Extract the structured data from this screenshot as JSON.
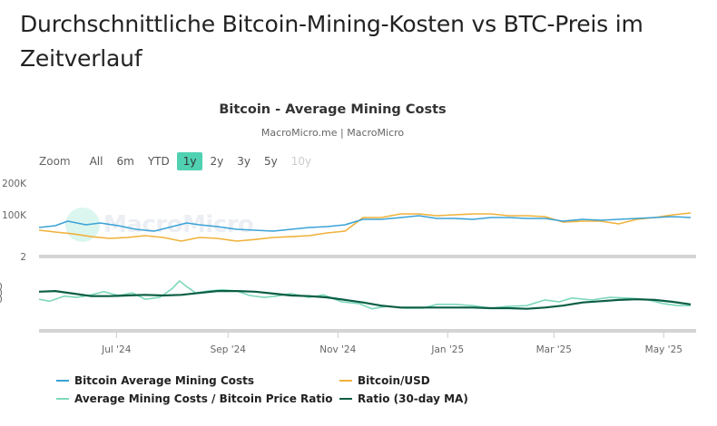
{
  "page": {
    "title": "Durchschnittliche Bitcoin-Mining-Kosten vs BTC-Preis im Zeitverlauf"
  },
  "chart": {
    "title": "Bitcoin - Average Mining Costs",
    "subtitle": "MacroMicro.me | MacroMicro",
    "watermark": "MacroMicro",
    "range_selector": {
      "label": "Zoom",
      "buttons": [
        {
          "label": "All",
          "state": "normal"
        },
        {
          "label": "6m",
          "state": "normal"
        },
        {
          "label": "YTD",
          "state": "normal"
        },
        {
          "label": "1y",
          "state": "selected"
        },
        {
          "label": "2y",
          "state": "normal"
        },
        {
          "label": "3y",
          "state": "normal"
        },
        {
          "label": "5y",
          "state": "normal"
        },
        {
          "label": "10y",
          "state": "disabled"
        }
      ]
    },
    "colors": {
      "mining_cost": "#3ba3d6",
      "btc_usd": "#f0b23b",
      "ratio": "#7fd8bd",
      "ratio_ma": "#0b5e45",
      "selected_button": "#4fd1b2",
      "axis_bar": "#d4d4d4"
    }
  },
  "chart_data": {
    "type": "line",
    "title": "Bitcoin - Average Mining Costs",
    "subtitle": "MacroMicro.me | MacroMicro",
    "x_range": [
      "2024-05-19",
      "2025-05-19"
    ],
    "x_ticks": [
      {
        "date": "2024-07-01",
        "label": "Jul '24"
      },
      {
        "date": "2024-09-01",
        "label": "Sep '24"
      },
      {
        "date": "2024-11-01",
        "label": "Nov '24"
      },
      {
        "date": "2025-01-01",
        "label": "Jan '25"
      },
      {
        "date": "2025-03-01",
        "label": "Mar '25"
      },
      {
        "date": "2025-05-01",
        "label": "May '25"
      }
    ],
    "panes": [
      {
        "name": "price",
        "y_scale": "log",
        "y_ticks": [
          {
            "value": 200000,
            "label": "200K"
          },
          {
            "value": 100000,
            "label": "100K"
          },
          {
            "value": 2,
            "label": "2"
          }
        ],
        "series": [
          {
            "name": "Bitcoin Average Mining Costs",
            "key": "mining_cost",
            "unit": "USD",
            "points": [
              [
                "2024-05-19",
                75800
              ],
              [
                "2024-05-28",
                78800
              ],
              [
                "2024-06-04",
                87100
              ],
              [
                "2024-06-14",
                80400
              ],
              [
                "2024-06-22",
                83700
              ],
              [
                "2024-07-02",
                78800
              ],
              [
                "2024-07-12",
                72900
              ],
              [
                "2024-07-22",
                70000
              ],
              [
                "2024-08-01",
                77300
              ],
              [
                "2024-08-09",
                83700
              ],
              [
                "2024-08-16",
                80400
              ],
              [
                "2024-08-26",
                77300
              ],
              [
                "2024-09-06",
                72900
              ],
              [
                "2024-09-16",
                71400
              ],
              [
                "2024-09-26",
                70000
              ],
              [
                "2024-10-06",
                72900
              ],
              [
                "2024-10-16",
                75800
              ],
              [
                "2024-10-26",
                77300
              ],
              [
                "2024-11-05",
                80400
              ],
              [
                "2024-11-15",
                90600
              ],
              [
                "2024-11-25",
                90600
              ],
              [
                "2024-12-06",
                94200
              ],
              [
                "2024-12-16",
                98000
              ],
              [
                "2024-12-26",
                92400
              ],
              [
                "2025-01-05",
                92400
              ],
              [
                "2025-01-15",
                90600
              ],
              [
                "2025-01-25",
                94200
              ],
              [
                "2025-02-04",
                94200
              ],
              [
                "2025-02-14",
                92400
              ],
              [
                "2025-02-24",
                92400
              ],
              [
                "2025-03-06",
                87100
              ],
              [
                "2025-03-17",
                90600
              ],
              [
                "2025-03-27",
                88800
              ],
              [
                "2025-04-06",
                90600
              ],
              [
                "2025-04-16",
                92400
              ],
              [
                "2025-04-26",
                94200
              ],
              [
                "2025-05-06",
                96100
              ],
              [
                "2025-05-16",
                94200
              ]
            ]
          },
          {
            "name": "Bitcoin/USD",
            "key": "btc_usd",
            "unit": "USD",
            "points": [
              [
                "2024-05-19",
                71400
              ],
              [
                "2024-05-28",
                68600
              ],
              [
                "2024-06-07",
                65900
              ],
              [
                "2024-06-17",
                62100
              ],
              [
                "2024-06-27",
                59700
              ],
              [
                "2024-07-07",
                60900
              ],
              [
                "2024-07-17",
                63400
              ],
              [
                "2024-07-27",
                60900
              ],
              [
                "2024-08-06",
                56300
              ],
              [
                "2024-08-16",
                60900
              ],
              [
                "2024-08-26",
                59700
              ],
              [
                "2024-09-06",
                56300
              ],
              [
                "2024-09-16",
                58400
              ],
              [
                "2024-09-26",
                60900
              ],
              [
                "2024-10-06",
                62100
              ],
              [
                "2024-10-16",
                63400
              ],
              [
                "2024-10-26",
                67300
              ],
              [
                "2024-11-05",
                70000
              ],
              [
                "2024-11-15",
                94200
              ],
              [
                "2024-11-25",
                94200
              ],
              [
                "2024-12-06",
                102000
              ],
              [
                "2024-12-16",
                102000
              ],
              [
                "2024-12-26",
                98000
              ],
              [
                "2025-01-05",
                100000
              ],
              [
                "2025-01-15",
                102000
              ],
              [
                "2025-01-25",
                102000
              ],
              [
                "2025-02-04",
                98000
              ],
              [
                "2025-02-14",
                98000
              ],
              [
                "2025-02-24",
                96100
              ],
              [
                "2025-03-06",
                85400
              ],
              [
                "2025-03-17",
                87100
              ],
              [
                "2025-03-27",
                87100
              ],
              [
                "2025-04-06",
                82000
              ],
              [
                "2025-04-16",
                90600
              ],
              [
                "2025-04-26",
                94200
              ],
              [
                "2025-05-06",
                100000
              ],
              [
                "2025-05-16",
                104000
              ]
            ]
          }
        ]
      },
      {
        "name": "ratio",
        "y_scale": "linear",
        "y_ticks": [],
        "series": [
          {
            "name": "Average Mining Costs / Bitcoin Price Ratio",
            "key": "ratio",
            "points": [
              [
                "2024-05-19",
                1.04
              ],
              [
                "2024-05-25",
                1.01
              ],
              [
                "2024-06-02",
                1.09
              ],
              [
                "2024-06-09",
                1.07
              ],
              [
                "2024-06-17",
                1.11
              ],
              [
                "2024-06-24",
                1.16
              ],
              [
                "2024-07-02",
                1.1
              ],
              [
                "2024-07-10",
                1.14
              ],
              [
                "2024-07-17",
                1.04
              ],
              [
                "2024-07-25",
                1.07
              ],
              [
                "2024-08-01",
                1.21
              ],
              [
                "2024-08-05",
                1.33
              ],
              [
                "2024-08-09",
                1.24
              ],
              [
                "2024-08-14",
                1.14
              ],
              [
                "2024-08-21",
                1.17
              ],
              [
                "2024-08-29",
                1.19
              ],
              [
                "2024-09-06",
                1.17
              ],
              [
                "2024-09-13",
                1.1
              ],
              [
                "2024-09-21",
                1.07
              ],
              [
                "2024-09-28",
                1.09
              ],
              [
                "2024-10-06",
                1.13
              ],
              [
                "2024-10-16",
                1.07
              ],
              [
                "2024-10-24",
                1.11
              ],
              [
                "2024-11-03",
                1.0
              ],
              [
                "2024-11-13",
                0.97
              ],
              [
                "2024-11-20",
                0.89
              ],
              [
                "2024-11-28",
                0.93
              ],
              [
                "2024-12-08",
                0.9
              ],
              [
                "2024-12-18",
                0.9
              ],
              [
                "2024-12-26",
                0.96
              ],
              [
                "2025-01-05",
                0.96
              ],
              [
                "2025-01-15",
                0.94
              ],
              [
                "2025-01-25",
                0.9
              ],
              [
                "2025-02-04",
                0.93
              ],
              [
                "2025-02-14",
                0.94
              ],
              [
                "2025-02-24",
                1.03
              ],
              [
                "2025-03-04",
                1.0
              ],
              [
                "2025-03-11",
                1.06
              ],
              [
                "2025-03-22",
                1.03
              ],
              [
                "2025-04-01",
                1.07
              ],
              [
                "2025-04-11",
                1.06
              ],
              [
                "2025-04-21",
                1.04
              ],
              [
                "2025-05-01",
                0.97
              ],
              [
                "2025-05-09",
                0.94
              ],
              [
                "2025-05-16",
                0.94
              ]
            ]
          },
          {
            "name": "Ratio (30-day MA)",
            "key": "ratio_ma",
            "points": [
              [
                "2024-05-19",
                1.16
              ],
              [
                "2024-05-28",
                1.17
              ],
              [
                "2024-06-07",
                1.13
              ],
              [
                "2024-06-17",
                1.09
              ],
              [
                "2024-06-27",
                1.09
              ],
              [
                "2024-07-07",
                1.1
              ],
              [
                "2024-07-17",
                1.11
              ],
              [
                "2024-07-27",
                1.1
              ],
              [
                "2024-08-06",
                1.11
              ],
              [
                "2024-08-16",
                1.14
              ],
              [
                "2024-08-26",
                1.17
              ],
              [
                "2024-09-06",
                1.17
              ],
              [
                "2024-09-16",
                1.16
              ],
              [
                "2024-09-26",
                1.13
              ],
              [
                "2024-10-06",
                1.1
              ],
              [
                "2024-10-16",
                1.09
              ],
              [
                "2024-10-26",
                1.07
              ],
              [
                "2024-11-05",
                1.03
              ],
              [
                "2024-11-15",
                0.99
              ],
              [
                "2024-11-25",
                0.94
              ],
              [
                "2024-12-06",
                0.91
              ],
              [
                "2024-12-16",
                0.91
              ],
              [
                "2024-12-26",
                0.91
              ],
              [
                "2025-01-05",
                0.91
              ],
              [
                "2025-01-15",
                0.91
              ],
              [
                "2025-01-25",
                0.9
              ],
              [
                "2025-02-04",
                0.9
              ],
              [
                "2025-02-14",
                0.89
              ],
              [
                "2025-02-24",
                0.91
              ],
              [
                "2025-03-06",
                0.94
              ],
              [
                "2025-03-17",
                0.99
              ],
              [
                "2025-03-27",
                1.01
              ],
              [
                "2025-04-06",
                1.03
              ],
              [
                "2025-04-16",
                1.04
              ],
              [
                "2025-04-26",
                1.03
              ],
              [
                "2025-05-06",
                1.0
              ],
              [
                "2025-05-16",
                0.96
              ]
            ]
          }
        ]
      }
    ],
    "legend": {
      "placement": "bottom",
      "items": [
        {
          "label": "Bitcoin Average Mining Costs",
          "key": "mining_cost"
        },
        {
          "label": "Bitcoin/USD",
          "key": "btc_usd"
        },
        {
          "label": "Average Mining Costs / Bitcoin Price Ratio",
          "key": "ratio"
        },
        {
          "label": "Ratio (30-day MA)",
          "key": "ratio_ma"
        }
      ]
    },
    "grid": false
  }
}
